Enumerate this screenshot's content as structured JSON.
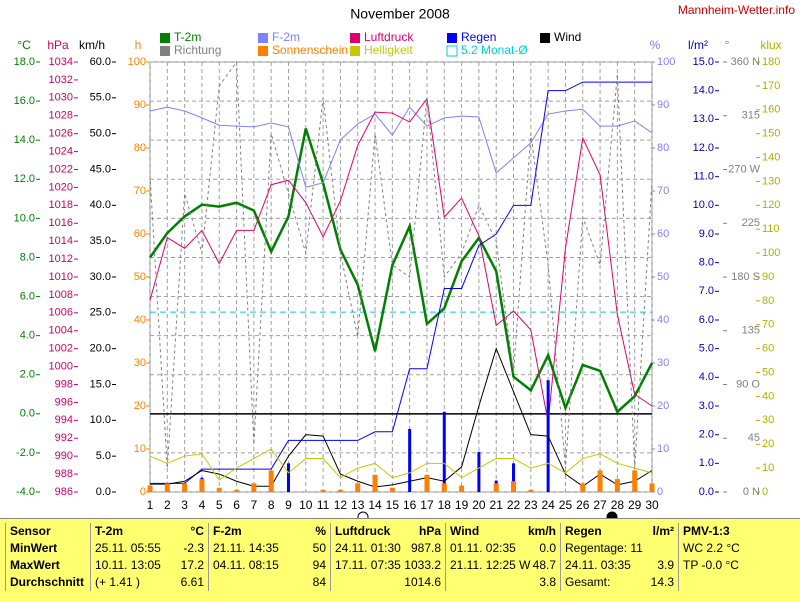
{
  "header": {
    "site": "Mannheim-Wetter.info"
  },
  "chart_data": {
    "type": "line",
    "title": "November 2008",
    "x": [
      1,
      2,
      3,
      4,
      5,
      6,
      7,
      8,
      9,
      10,
      11,
      12,
      13,
      14,
      15,
      16,
      17,
      18,
      19,
      20,
      21,
      22,
      23,
      24,
      25,
      26,
      27,
      28,
      29,
      30
    ],
    "xlim": [
      1,
      30
    ],
    "grid": true,
    "axes": [
      {
        "label": "°C",
        "color": "#008000",
        "lim": [
          -4,
          18
        ],
        "ticks": [
          {
            "value": -4,
            "label": "-4.0"
          },
          {
            "value": -2,
            "label": "-2.0"
          },
          {
            "value": 0,
            "label": "0.0"
          },
          {
            "value": 2,
            "label": "2.0"
          },
          {
            "value": 4,
            "label": "4.0"
          },
          {
            "value": 6,
            "label": "6.0"
          },
          {
            "value": 8,
            "label": "8.0"
          },
          {
            "value": 10,
            "label": "10.0"
          },
          {
            "value": 12,
            "label": "12.0"
          },
          {
            "value": 14,
            "label": "14.0"
          },
          {
            "value": 16,
            "label": "16.0"
          },
          {
            "value": 18,
            "label": "18.0"
          }
        ]
      },
      {
        "label": "hPa",
        "color": "#cc0066",
        "lim": [
          986,
          1034
        ],
        "ticks": [
          986,
          988,
          990,
          992,
          994,
          996,
          998,
          1000,
          1002,
          1004,
          1006,
          1008,
          1010,
          1012,
          1014,
          1016,
          1018,
          1020,
          1022,
          1024,
          1026,
          1028,
          1030,
          1032,
          1034
        ]
      },
      {
        "label": "km/h",
        "color": "#000000",
        "lim": [
          0,
          60
        ],
        "ticks": [
          {
            "value": 0,
            "label": "0.0"
          },
          {
            "value": 5,
            "label": "5.0"
          },
          {
            "value": 10,
            "label": "10.0"
          },
          {
            "value": 15,
            "label": "15.0"
          },
          {
            "value": 20,
            "label": "20.0"
          },
          {
            "value": 25,
            "label": "25.0"
          },
          {
            "value": 30,
            "label": "30.0"
          },
          {
            "value": 35,
            "label": "35.0"
          },
          {
            "value": 40,
            "label": "40.0"
          },
          {
            "value": 45,
            "label": "45.0"
          },
          {
            "value": 50,
            "label": "50.0"
          },
          {
            "value": 55,
            "label": "55.0"
          },
          {
            "value": 60,
            "label": "60.0"
          }
        ]
      },
      {
        "label": "h",
        "color": "#ff8000",
        "lim": [
          0,
          100
        ],
        "ticks": [
          0,
          10,
          20,
          30,
          40,
          50,
          60,
          70,
          80,
          90,
          100
        ]
      },
      {
        "label": "%",
        "color": "#8080ff",
        "lim": [
          0,
          100
        ],
        "ticks": [
          0,
          10,
          20,
          30,
          40,
          50,
          60,
          70,
          80,
          90,
          100
        ]
      },
      {
        "label": "l/m²",
        "color": "#0000c0",
        "lim": [
          0,
          15
        ],
        "ticks": [
          {
            "value": 0,
            "label": "0.0"
          },
          {
            "value": 1,
            "label": "1.0"
          },
          {
            "value": 2,
            "label": "2.0"
          },
          {
            "value": 3,
            "label": "3.0"
          },
          {
            "value": 4,
            "label": "4.0"
          },
          {
            "value": 5,
            "label": "5.0"
          },
          {
            "value": 6,
            "label": "6.0"
          },
          {
            "value": 7,
            "label": "7.0"
          },
          {
            "value": 8,
            "label": "8.0"
          },
          {
            "value": 9,
            "label": "9.0"
          },
          {
            "value": 10,
            "label": "10.0"
          },
          {
            "value": 11,
            "label": "11.0"
          },
          {
            "value": 12,
            "label": "12.0"
          },
          {
            "value": 13,
            "label": "13.0"
          },
          {
            "value": 14,
            "label": "14.0"
          },
          {
            "value": 15,
            "label": "15.0"
          }
        ]
      },
      {
        "label": "°",
        "color": "#808080",
        "lim": [
          0,
          360
        ],
        "ticks": [
          {
            "value": 0,
            "label": "0 N"
          },
          45,
          {
            "value": 90,
            "label": "90 O"
          },
          135,
          {
            "value": 180,
            "label": "180 S"
          },
          225,
          {
            "value": 270,
            "label": "270 W"
          },
          315,
          {
            "value": 360,
            "label": "360 N"
          }
        ]
      },
      {
        "label": "klux",
        "color": "#b0b000",
        "lim": [
          0,
          180
        ],
        "ticks": [
          0,
          10,
          20,
          30,
          40,
          50,
          60,
          70,
          80,
          90,
          100,
          110,
          120,
          130,
          140,
          150,
          160,
          170,
          180
        ]
      }
    ],
    "series": [
      {
        "name": "T-2m",
        "color": "#008000",
        "axis": "°C",
        "style": "line",
        "values": [
          8.0,
          9.25,
          10.1,
          10.7,
          10.6,
          10.8,
          10.4,
          8.3,
          10.1,
          14.6,
          11.8,
          8.4,
          6.6,
          3.2,
          7.6,
          9.6,
          4.6,
          5.4,
          7.8,
          9.0,
          7.3,
          1.9,
          1.2,
          3.0,
          0.3,
          2.5,
          2.2,
          0.1,
          0.9,
          2.6
        ]
      },
      {
        "name": "F-2m",
        "color": "#8080ff",
        "axis": "%",
        "style": "line",
        "values": [
          88.6,
          89.5,
          88.6,
          87,
          85.3,
          85.1,
          84.9,
          85.8,
          84.9,
          70.9,
          71.9,
          81.9,
          85.6,
          87.9,
          83,
          89.5,
          85.1,
          87,
          87.4,
          87.2,
          74.2,
          77.7,
          81.2,
          87.9,
          88.6,
          89,
          85.1,
          85.1,
          86.3,
          83.5
        ]
      },
      {
        "name": "Luftdruck",
        "color": "#e0006a",
        "axis": "hPa",
        "style": "line",
        "values": [
          1007.4,
          1014.4,
          1013.2,
          1015.2,
          1011.5,
          1015.2,
          1015.2,
          1020.3,
          1020.8,
          1018.3,
          1014.5,
          1018.5,
          1024.7,
          1028.4,
          1028.3,
          1027.3,
          1029.9,
          1016.7,
          1018.8,
          1014.6,
          1004.6,
          1006.2,
          1004.1,
          993.8,
          1013.2,
          1025.5,
          1021.4,
          1005.8,
          996.9,
          995.6
        ]
      },
      {
        "name": "Regen",
        "color": "#0000ff",
        "axis": "l/m²",
        "style": "line",
        "values": [
          0.3,
          0.3,
          0.3,
          0.8,
          0.8,
          0.8,
          0.8,
          0.8,
          1.8,
          1.8,
          1.8,
          1.8,
          1.8,
          2.1,
          2.1,
          4.3,
          4.3,
          7.1,
          7.1,
          8.6,
          9.0,
          10.0,
          10.0,
          14.0,
          14.0,
          14.3,
          14.3,
          14.3,
          14.3,
          14.3
        ],
        "bars": [
          0,
          0,
          0,
          0.5,
          0,
          0,
          0,
          0,
          1.0,
          0,
          0,
          0,
          0,
          0.3,
          0,
          2.2,
          0,
          2.8,
          0,
          1.4,
          0.4,
          1.0,
          0,
          3.9,
          0,
          0.3,
          0,
          0,
          0,
          0
        ]
      },
      {
        "name": "Wind",
        "color": "#000000",
        "axis": "km/h",
        "style": "line",
        "values": [
          1.1,
          1.1,
          1.5,
          3.0,
          2.5,
          1.5,
          0.8,
          0.8,
          5,
          8.0,
          7.8,
          2.5,
          1.5,
          0.7,
          1.0,
          1.5,
          2.0,
          1.5,
          3.5,
          12,
          20.0,
          14,
          8.0,
          7.8,
          2.5,
          0.8,
          2.5,
          1.0,
          1.5,
          3.0
        ]
      },
      {
        "name": "Richtung",
        "color": "#808080",
        "axis": "°",
        "style": "dashed",
        "values": [
          265,
          20,
          250,
          200,
          340,
          360,
          40,
          300,
          250,
          200,
          330,
          200,
          130,
          300,
          190,
          180,
          330,
          180,
          200,
          240,
          210,
          100,
          300,
          190,
          20,
          230,
          190,
          350,
          20,
          260
        ]
      },
      {
        "name": "Sonnenschein",
        "color": "#ff8000",
        "axis": "h",
        "style": "bar",
        "values": [
          1.5,
          2,
          2,
          3,
          1,
          0.5,
          2,
          5,
          0,
          0,
          0.5,
          0.5,
          2,
          4,
          1,
          0,
          4,
          2,
          1.5,
          0,
          2,
          2.5,
          0.5,
          0,
          0,
          2,
          5,
          3,
          5,
          2
        ]
      },
      {
        "name": "Helligkeit",
        "color": "#c8c800",
        "axis": "klux",
        "style": "line",
        "values": [
          15,
          12,
          15,
          16,
          5,
          10,
          14,
          18,
          8,
          14,
          14,
          6,
          10,
          12,
          6,
          8,
          12,
          12,
          6,
          10,
          14,
          14,
          10,
          12,
          8,
          14,
          16,
          12,
          10,
          8
        ]
      }
    ],
    "reference": {
      "label": "5.2 Monat-Ø",
      "value": 5.2,
      "axis": "°C",
      "color": "#00d0d0"
    }
  },
  "table": {
    "rows": [
      [
        {
          "l": "Sensor"
        },
        {
          "l": "T-2m",
          "r": "°C"
        },
        {
          "l": "F-2m",
          "r": "%"
        },
        {
          "l": "Luftdruck",
          "r": "hPa"
        },
        {
          "l": "Wind",
          "r": "km/h"
        },
        {
          "l": "Regen",
          "r": "l/m²"
        },
        {
          "l": "PMV-1:3"
        }
      ],
      [
        {
          "l": "MinWert"
        },
        {
          "l": "25.11.  05:55",
          "r": "-2.3"
        },
        {
          "l": "21.11.  14:35",
          "r": "50"
        },
        {
          "l": "24.11.  01:30",
          "r": "987.8"
        },
        {
          "l": "01.11.  02:35",
          "r": "0.0"
        },
        {
          "l": "Regentage: 11"
        },
        {
          "l": "WC 2.2 °C"
        }
      ],
      [
        {
          "l": "MaxWert"
        },
        {
          "l": "10.11.  13:05",
          "r": "17.2"
        },
        {
          "l": "04.11.  08:15",
          "r": "94"
        },
        {
          "l": "17.11.  07:35",
          "r": "1033.2"
        },
        {
          "l": "21.11.  12:25 W",
          "r": "48.7"
        },
        {
          "l": "24.11.  03:35",
          "r": "3.9"
        },
        {
          "l": "TP -0.0 °C"
        }
      ],
      [
        {
          "l": "Durchschnitt"
        },
        {
          "l": "(+ 1.41 )",
          "r": "6.61"
        },
        {
          "r": "84"
        },
        {
          "r": "1014.6"
        },
        {
          "r": "3.8"
        },
        {
          "l": "Gesamt:",
          "r": "14.3"
        },
        {}
      ]
    ]
  }
}
